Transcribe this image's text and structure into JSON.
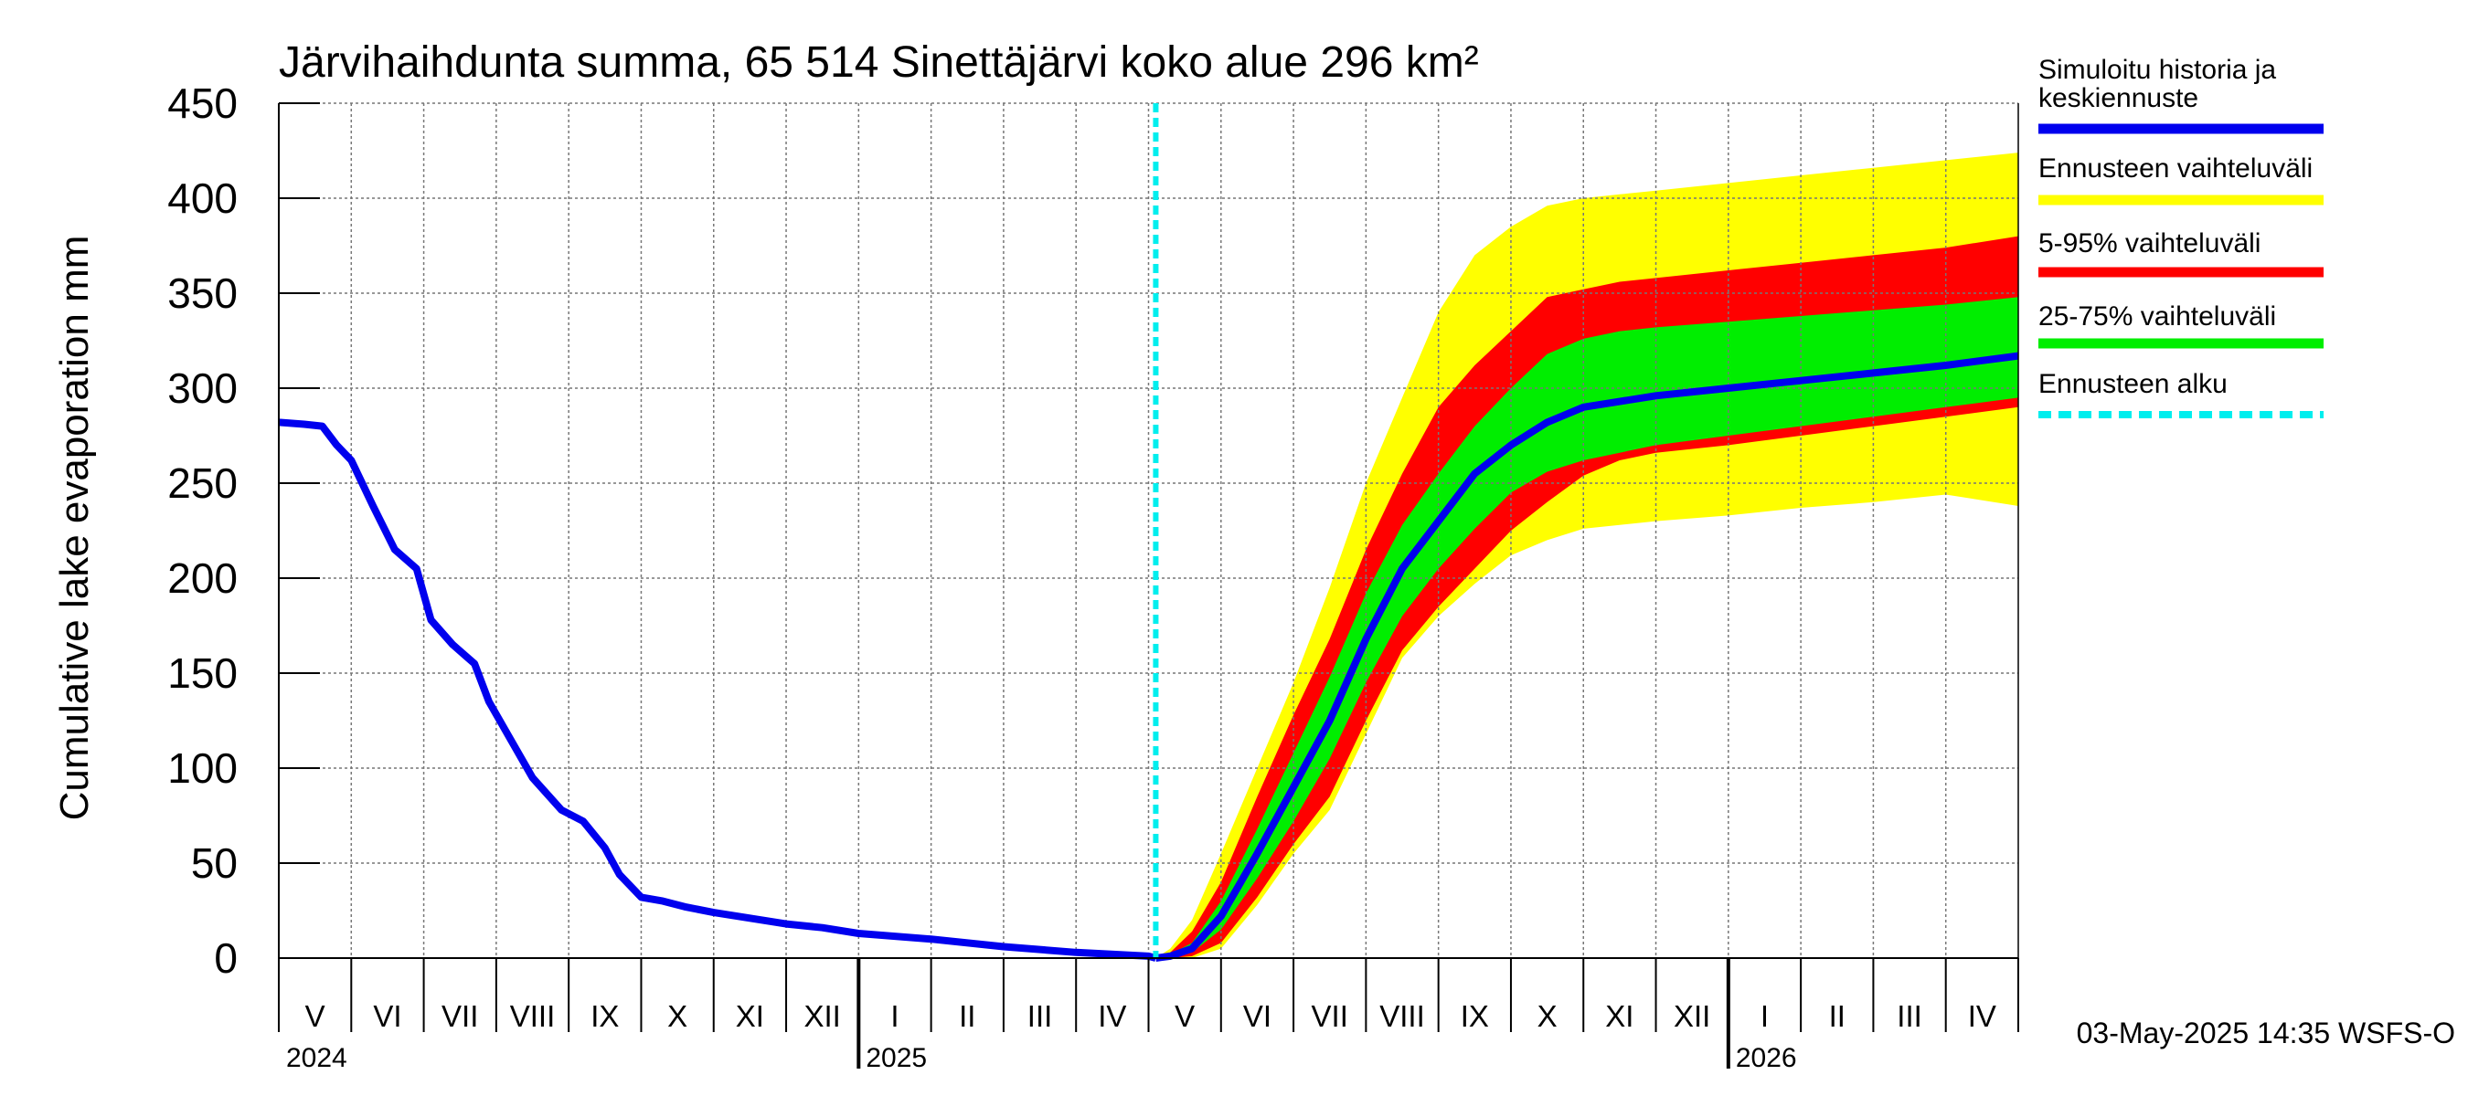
{
  "chart_data": {
    "type": "area",
    "title": "Järvihaihdunta summa, 65 514 Sinettäjärvi koko alue 296 km²",
    "ylabel": "Cumulative lake evaporation   mm",
    "xlabel": "",
    "ylim": [
      0,
      450
    ],
    "yticks": [
      0,
      50,
      100,
      150,
      200,
      250,
      300,
      350,
      400,
      450
    ],
    "ytick_labels": [
      "0",
      "50",
      "100",
      "150",
      "200",
      "250",
      "300",
      "350",
      "400",
      "450"
    ],
    "grid": true,
    "x_start": "2024-05-01",
    "x_end": "2026-05-01",
    "months": [
      "V",
      "VI",
      "VII",
      "VIII",
      "IX",
      "X",
      "XI",
      "XII",
      "I",
      "II",
      "III",
      "IV",
      "V",
      "VI",
      "VII",
      "VIII",
      "IX",
      "X",
      "XI",
      "XII",
      "I",
      "II",
      "III",
      "IV"
    ],
    "years": [
      {
        "label": "2024",
        "month_index": 0
      },
      {
        "label": "2025",
        "month_index": 8
      },
      {
        "label": "2026",
        "month_index": 20
      }
    ],
    "forecast_start_month": 12.1,
    "history": {
      "name": "Simuloitu historia ja keskiennuste",
      "x": [
        0,
        0.35,
        0.6,
        0.8,
        1.0,
        1.3,
        1.6,
        1.9,
        2.1,
        2.4,
        2.7,
        2.9,
        3.2,
        3.5,
        3.9,
        4.2,
        4.5,
        4.7,
        5.0,
        5.3,
        5.6,
        6.0,
        6.5,
        7.0,
        7.5,
        8.0,
        9.0,
        10.0,
        11.0,
        12.0,
        12.1
      ],
      "y": [
        282,
        281,
        280,
        270,
        262,
        238,
        215,
        205,
        178,
        165,
        155,
        135,
        115,
        95,
        78,
        72,
        58,
        44,
        32,
        30,
        27,
        24,
        21,
        18,
        16,
        13,
        10,
        6,
        3,
        1,
        0
      ]
    },
    "forecast_x": [
      12.1,
      12.3,
      12.6,
      13.0,
      13.5,
      14.0,
      14.5,
      15.0,
      15.5,
      16.0,
      16.5,
      17.0,
      17.5,
      18.0,
      18.5,
      19.0,
      20.0,
      21.0,
      22.0,
      23.0,
      24.0
    ],
    "forecast_median": [
      0,
      1,
      5,
      22,
      55,
      90,
      125,
      168,
      205,
      230,
      255,
      270,
      282,
      290,
      293,
      296,
      300,
      304,
      308,
      312,
      317
    ],
    "band_25_75": {
      "name": "25-75% vaihteluväli",
      "low": [
        0,
        0.5,
        3,
        15,
        42,
        72,
        105,
        145,
        180,
        205,
        226,
        245,
        256,
        262,
        266,
        270,
        275,
        280,
        285,
        290,
        295
      ],
      "high": [
        0,
        2,
        8,
        30,
        68,
        108,
        148,
        192,
        228,
        255,
        280,
        300,
        318,
        326,
        330,
        332,
        335,
        338,
        341,
        344,
        348
      ]
    },
    "band_5_95": {
      "name": "5-95% vaihteluväli",
      "low": [
        0,
        0,
        1,
        8,
        32,
        60,
        85,
        125,
        162,
        185,
        205,
        225,
        240,
        254,
        262,
        266,
        270,
        275,
        280,
        285,
        290
      ],
      "high": [
        0,
        3,
        14,
        40,
        85,
        128,
        168,
        215,
        255,
        290,
        312,
        330,
        348,
        352,
        356,
        358,
        362,
        366,
        370,
        374,
        380
      ]
    },
    "band_range": {
      "name": "Ennusteen vaihteluväli",
      "low": [
        0,
        0,
        0,
        5,
        28,
        55,
        78,
        118,
        158,
        180,
        197,
        212,
        220,
        226,
        228,
        230,
        233,
        237,
        240,
        244,
        238
      ],
      "high": [
        0,
        5,
        20,
        55,
        100,
        145,
        195,
        250,
        295,
        340,
        370,
        385,
        396,
        400,
        402,
        404,
        408,
        412,
        416,
        420,
        424
      ]
    },
    "forecast_start_label": "Ennusteen alku"
  },
  "legend": {
    "history": "Simuloitu historia ja keskiennuste",
    "range": "Ennusteen vaihteluväli",
    "p5_95": "5-95% vaihteluväli",
    "p25_75": "25-75% vaihteluväli",
    "start": "Ennusteen alku"
  },
  "colors": {
    "history": "#0000ee",
    "range": "#ffff00",
    "p5_95": "#ff0000",
    "p25_75": "#00ee00",
    "start": "#00eeee",
    "grid": "#777777"
  },
  "timestamp": "03-May-2025 14:35 WSFS-O"
}
